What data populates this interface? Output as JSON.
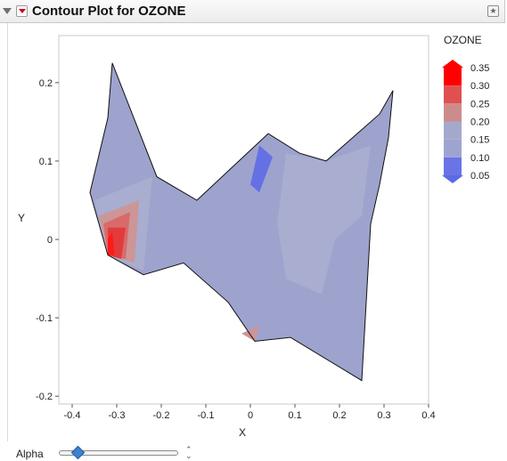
{
  "header": {
    "title": "Contour Plot for OZONE"
  },
  "legend": {
    "title": "OZONE",
    "levels": [
      "0.35",
      "0.30",
      "0.25",
      "0.20",
      "0.15",
      "0.10",
      "0.05"
    ],
    "colors": [
      "#ff0000",
      "#e05050",
      "#cc8c8c",
      "#a4a9cc",
      "#9ea4cf",
      "#6a74e6",
      "#5c6ae4"
    ]
  },
  "controls": {
    "alpha_label": "Alpha"
  },
  "chart_data": {
    "type": "contour",
    "xlabel": "X",
    "ylabel": "Y",
    "xlim": [
      -0.43,
      0.4
    ],
    "ylim": [
      -0.21,
      0.26
    ],
    "x_ticks": [
      "-0.4",
      "-0.3",
      "-0.2",
      "-0.1",
      "0",
      "0.1",
      "0.2",
      "0.3",
      "0.4"
    ],
    "y_ticks": [
      "0.2",
      "0.1",
      "0",
      "-0.1",
      "-0.2"
    ],
    "boundary": [
      [
        -0.31,
        0.225
      ],
      [
        -0.21,
        0.08
      ],
      [
        -0.12,
        0.05
      ],
      [
        0.04,
        0.135
      ],
      [
        0.11,
        0.11
      ],
      [
        0.17,
        0.1
      ],
      [
        0.29,
        0.16
      ],
      [
        0.32,
        0.19
      ],
      [
        0.31,
        0.13
      ],
      [
        0.29,
        0.07
      ],
      [
        0.27,
        0.02
      ],
      [
        0.25,
        -0.18
      ],
      [
        0.09,
        -0.125
      ],
      [
        0.01,
        -0.13
      ],
      [
        -0.05,
        -0.08
      ],
      [
        -0.15,
        -0.03
      ],
      [
        -0.24,
        -0.045
      ],
      [
        -0.32,
        -0.02
      ],
      [
        -0.36,
        0.06
      ],
      [
        -0.32,
        0.155
      ]
    ],
    "regions": [
      {
        "level": "0.15-0.20",
        "points": [
          [
            -0.35,
            0.05
          ],
          [
            -0.22,
            0.08
          ],
          [
            -0.24,
            -0.04
          ],
          [
            -0.32,
            -0.02
          ]
        ]
      },
      {
        "level": "0.20-0.25",
        "points": [
          [
            -0.34,
            0.03
          ],
          [
            -0.25,
            0.05
          ],
          [
            -0.26,
            -0.03
          ],
          [
            -0.32,
            -0.02
          ]
        ]
      },
      {
        "level": "0.25-0.30",
        "points": [
          [
            -0.33,
            0.02
          ],
          [
            -0.27,
            0.035
          ],
          [
            -0.28,
            -0.025
          ],
          [
            -0.32,
            -0.02
          ]
        ]
      },
      {
        "level": "0.30-0.35",
        "points": [
          [
            -0.32,
            0.015
          ],
          [
            -0.28,
            0.015
          ],
          [
            -0.29,
            -0.025
          ],
          [
            -0.32,
            -0.02
          ]
        ]
      },
      {
        "level": "0.35+",
        "points": [
          [
            -0.32,
            0.0
          ],
          [
            -0.31,
            0.01
          ],
          [
            -0.305,
            -0.02
          ],
          [
            -0.32,
            -0.02
          ]
        ]
      },
      {
        "level": "0.05-0.10",
        "points": [
          [
            0.02,
            0.12
          ],
          [
            0.05,
            0.105
          ],
          [
            0.02,
            0.06
          ],
          [
            0.0,
            0.07
          ]
        ]
      },
      {
        "level": "0.20-0.25",
        "points": [
          [
            0.1,
            0.09
          ],
          [
            0.13,
            0.075
          ],
          [
            0.12,
            0.1
          ]
        ]
      },
      {
        "level": "0.20-0.25",
        "points": [
          [
            -0.02,
            -0.12
          ],
          [
            0.01,
            -0.13
          ],
          [
            0.02,
            -0.11
          ]
        ]
      },
      {
        "level": "0.15-0.20",
        "points": [
          [
            0.08,
            0.11
          ],
          [
            0.17,
            0.1
          ],
          [
            0.27,
            0.12
          ],
          [
            0.25,
            0.03
          ],
          [
            0.19,
            0.0
          ],
          [
            0.16,
            -0.07
          ],
          [
            0.08,
            -0.05
          ],
          [
            0.06,
            0.02
          ]
        ]
      }
    ]
  }
}
